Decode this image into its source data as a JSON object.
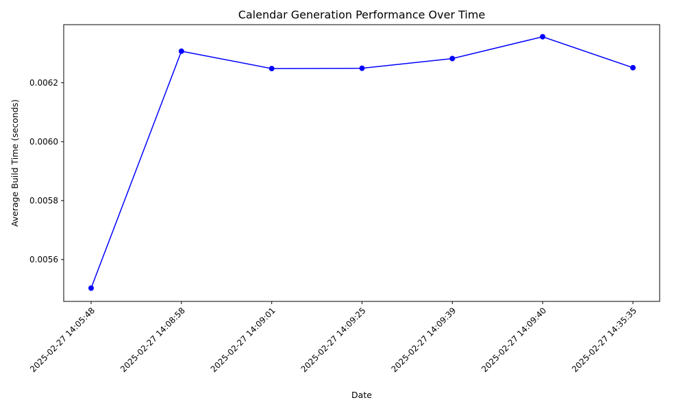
{
  "chart_data": {
    "type": "line",
    "title": "Calendar Generation Performance Over Time",
    "xlabel": "Date",
    "ylabel": "Average Build Time (seconds)",
    "categories": [
      "2025-02-27 14:05:48",
      "2025-02-27 14:08:58",
      "2025-02-27 14:09:01",
      "2025-02-27 14:09:25",
      "2025-02-27 14:09:39",
      "2025-02-27 14:09:40",
      "2025-02-27 14:35:35"
    ],
    "series": [
      {
        "values": [
          0.005503,
          0.006307,
          0.006248,
          0.006249,
          0.006282,
          0.006356,
          0.006251
        ]
      }
    ],
    "ylim": [
      0.005458,
      0.006397
    ],
    "yticks": [
      "0.0056",
      "0.0058",
      "0.0060",
      "0.0062"
    ],
    "grid": false,
    "line_color": "#0000ff",
    "marker": "circle"
  }
}
